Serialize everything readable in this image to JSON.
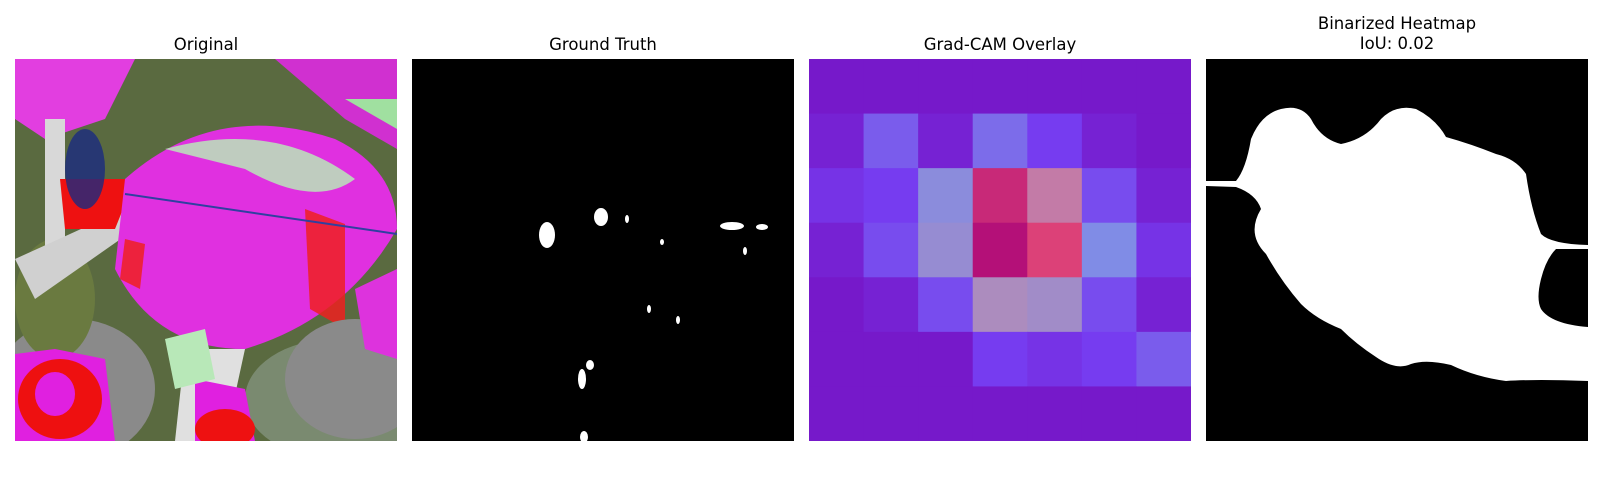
{
  "panels": [
    {
      "title": "Original"
    },
    {
      "title": "Ground Truth"
    },
    {
      "title": "Grad-CAM Overlay"
    },
    {
      "title": "Binarized Heatmap",
      "subtitle": "IoU: 0.02"
    }
  ],
  "colors": {
    "background": "#ffffff",
    "leaf_magenta": "#dd22dd",
    "mask_white": "#ffffff",
    "mask_black": "#000000",
    "cam_purple": "#7610c0",
    "cam_hot": "#f06080"
  },
  "gradcam_grid": [
    [
      0.05,
      0.05,
      0.05,
      0.05,
      0.05,
      0.05,
      0.05
    ],
    [
      0.1,
      0.35,
      0.1,
      0.4,
      0.25,
      0.1,
      0.05
    ],
    [
      0.2,
      0.25,
      0.55,
      0.95,
      0.75,
      0.3,
      0.1
    ],
    [
      0.1,
      0.3,
      0.6,
      1.0,
      0.9,
      0.5,
      0.2
    ],
    [
      0.05,
      0.1,
      0.3,
      0.7,
      0.65,
      0.3,
      0.1
    ],
    [
      0.05,
      0.05,
      0.05,
      0.25,
      0.2,
      0.25,
      0.35
    ],
    [
      0.05,
      0.05,
      0.05,
      0.05,
      0.05,
      0.05,
      0.05
    ]
  ]
}
